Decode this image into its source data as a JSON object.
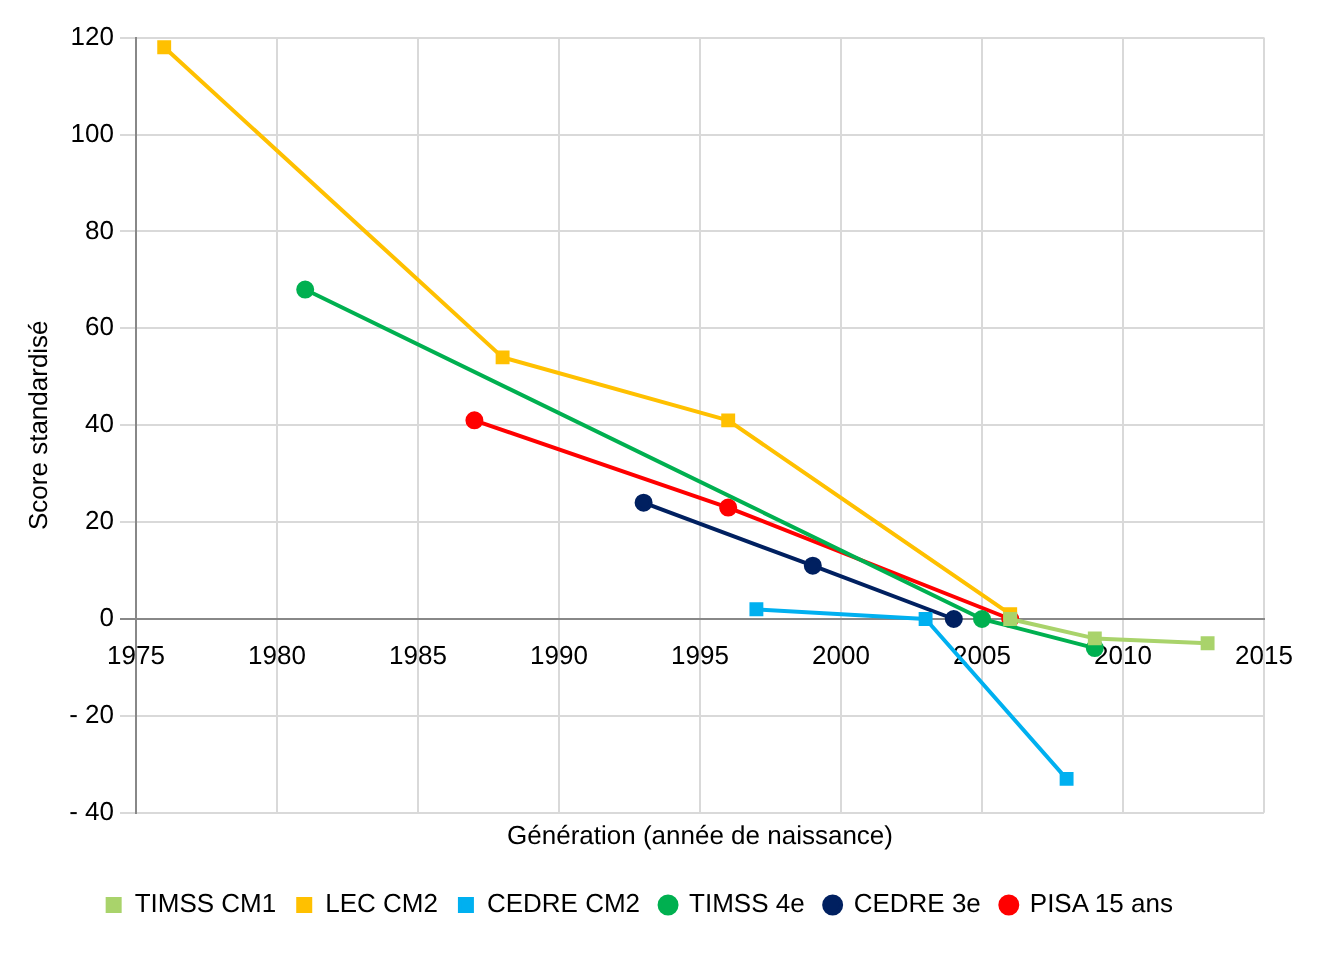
{
  "chart_data": {
    "type": "line",
    "xlabel": "Génération (année de naissance)",
    "ylabel": "Score standardisé",
    "xlim": [
      1975,
      2015
    ],
    "xticks": [
      1975,
      1980,
      1985,
      1990,
      1995,
      2000,
      2005,
      2010,
      2015
    ],
    "ylim": [
      -40,
      120
    ],
    "yticks": [
      {
        "value": -40,
        "label": "- 40"
      },
      {
        "value": -20,
        "label": "- 20"
      },
      0,
      20,
      40,
      60,
      80,
      100,
      120
    ],
    "grid": true,
    "legend": "bottom",
    "line_style": "solid",
    "series": [
      {
        "name": "TIMSS CM1",
        "color": "#a9d36b",
        "marker": "square",
        "x": [
          2006,
          2009,
          2013
        ],
        "values": [
          0,
          -4,
          -5
        ]
      },
      {
        "name": "LEC CM2",
        "color": "#ffc000",
        "marker": "square",
        "x": [
          1976,
          1988,
          1996,
          2006
        ],
        "values": [
          118,
          54,
          41,
          1
        ]
      },
      {
        "name": "CEDRE CM2",
        "color": "#00b0f0",
        "marker": "square",
        "x": [
          1997,
          2003,
          2008
        ],
        "values": [
          2,
          0,
          -33
        ]
      },
      {
        "name": "TIMSS 4e",
        "color": "#00b050",
        "marker": "circle",
        "x": [
          1981,
          2005,
          2009
        ],
        "values": [
          68,
          0,
          -6
        ]
      },
      {
        "name": "CEDRE 3e",
        "color": "#002060",
        "marker": "circle",
        "x": [
          1993,
          1999,
          2004
        ],
        "values": [
          24,
          11,
          0
        ]
      },
      {
        "name": "PISA 15 ans",
        "color": "#ff0000",
        "marker": "circle",
        "x": [
          1987,
          1996,
          2006
        ],
        "values": [
          41,
          23,
          0
        ]
      }
    ]
  }
}
